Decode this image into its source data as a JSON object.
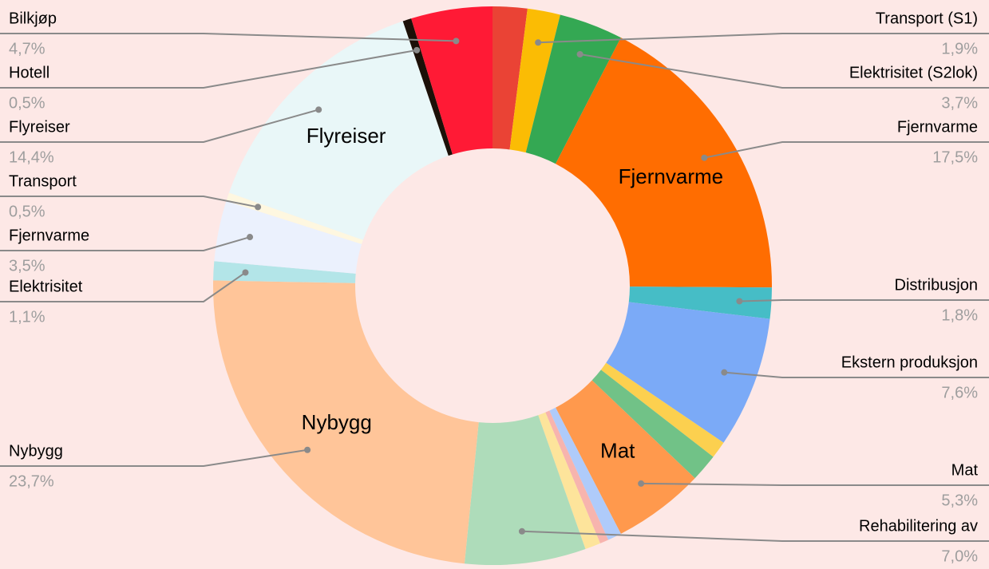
{
  "chart_data": {
    "type": "donut",
    "categories": [
      null,
      "Transport (S1)",
      "Elektrisitet (S2lok)",
      "Fjernvarme",
      "Distribusjon",
      "Ekstern produksjon",
      null,
      null,
      "Mat",
      null,
      null,
      null,
      "Rehabilitering av",
      "Nybygg",
      "Elektrisitet",
      "Fjernvarme",
      "Transport",
      "Flyreiser",
      "Hotell",
      "Bilkjøp"
    ],
    "values": [
      2.0,
      1.9,
      3.7,
      17.5,
      1.8,
      7.6,
      1.0,
      1.6,
      5.3,
      0.8,
      0.5,
      0.9,
      7.0,
      23.7,
      1.1,
      3.5,
      0.5,
      14.4,
      0.5,
      4.7
    ],
    "value_labels": [
      null,
      "1,9%",
      "3,7%",
      "17,5%",
      "1,8%",
      "7,6%",
      null,
      null,
      "5,3%",
      null,
      null,
      null,
      "7,0%",
      "23,7%",
      "1,1%",
      "3,5%",
      "0,5%",
      "14,4%",
      "0,5%",
      "4,7%"
    ],
    "colors": [
      "#ea4335",
      "#fbbc04",
      "#34a853",
      "#ff6d01",
      "#46bdc6",
      "#7baaf7",
      "#fcd04f",
      "#71c287",
      "#ff994d",
      "#afcbfa",
      "#f7b4ae",
      "#fde49b",
      "#aedcba",
      "#ffc599",
      "#b3e5e8",
      "#ebf1fd",
      "#fef7e0",
      "#e9f7f8",
      "#1c1008",
      "#ff1a35"
    ],
    "inner_labels": [
      3,
      8,
      13,
      17
    ]
  }
}
